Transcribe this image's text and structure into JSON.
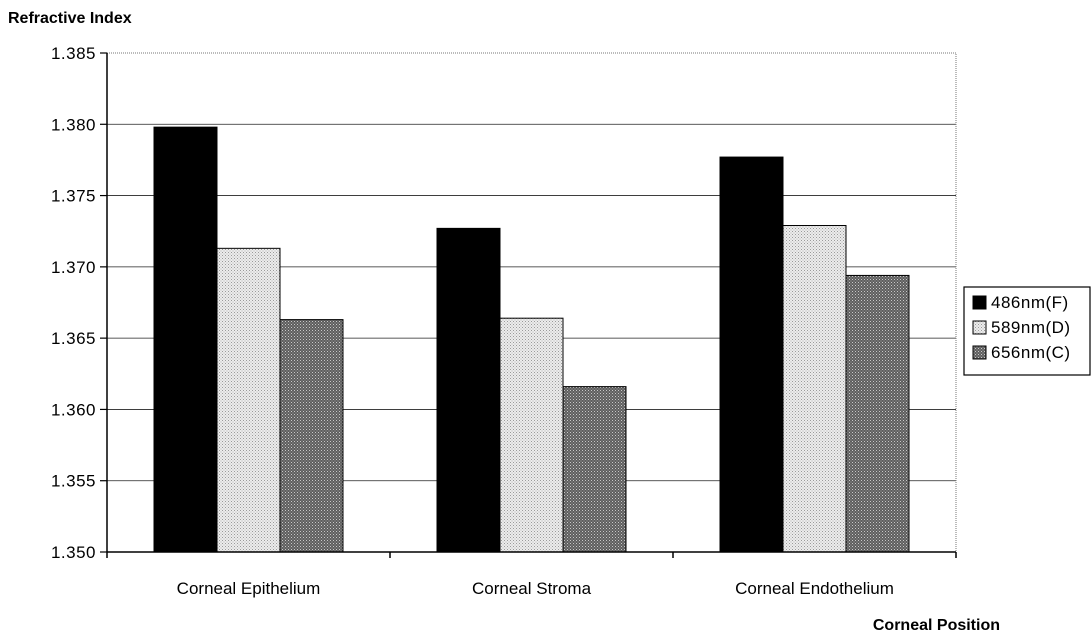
{
  "chart_data": {
    "type": "bar",
    "ylabel": "Refractive Index",
    "xlabel": "Corneal Position",
    "categories": [
      "Corneal Epithelium",
      "Corneal Stroma",
      "Corneal Endothelium"
    ],
    "series": [
      {
        "name": "486nm(F)",
        "values": [
          1.3798,
          1.3727,
          1.3777
        ],
        "color": "#000000",
        "pattern": "solid"
      },
      {
        "name": "589nm(D)",
        "values": [
          1.3713,
          1.3664,
          1.3729
        ],
        "color": "#d4d4d4",
        "pattern": "light-dotted"
      },
      {
        "name": "656nm(C)",
        "values": [
          1.3663,
          1.3616,
          1.3694
        ],
        "color": "#7a7a7a",
        "pattern": "dark-dotted"
      }
    ],
    "ylim": [
      1.35,
      1.385
    ],
    "yticks": [
      "1.350",
      "1.355",
      "1.360",
      "1.365",
      "1.370",
      "1.375",
      "1.380",
      "1.385"
    ],
    "grid": true,
    "legend_position": "right"
  }
}
